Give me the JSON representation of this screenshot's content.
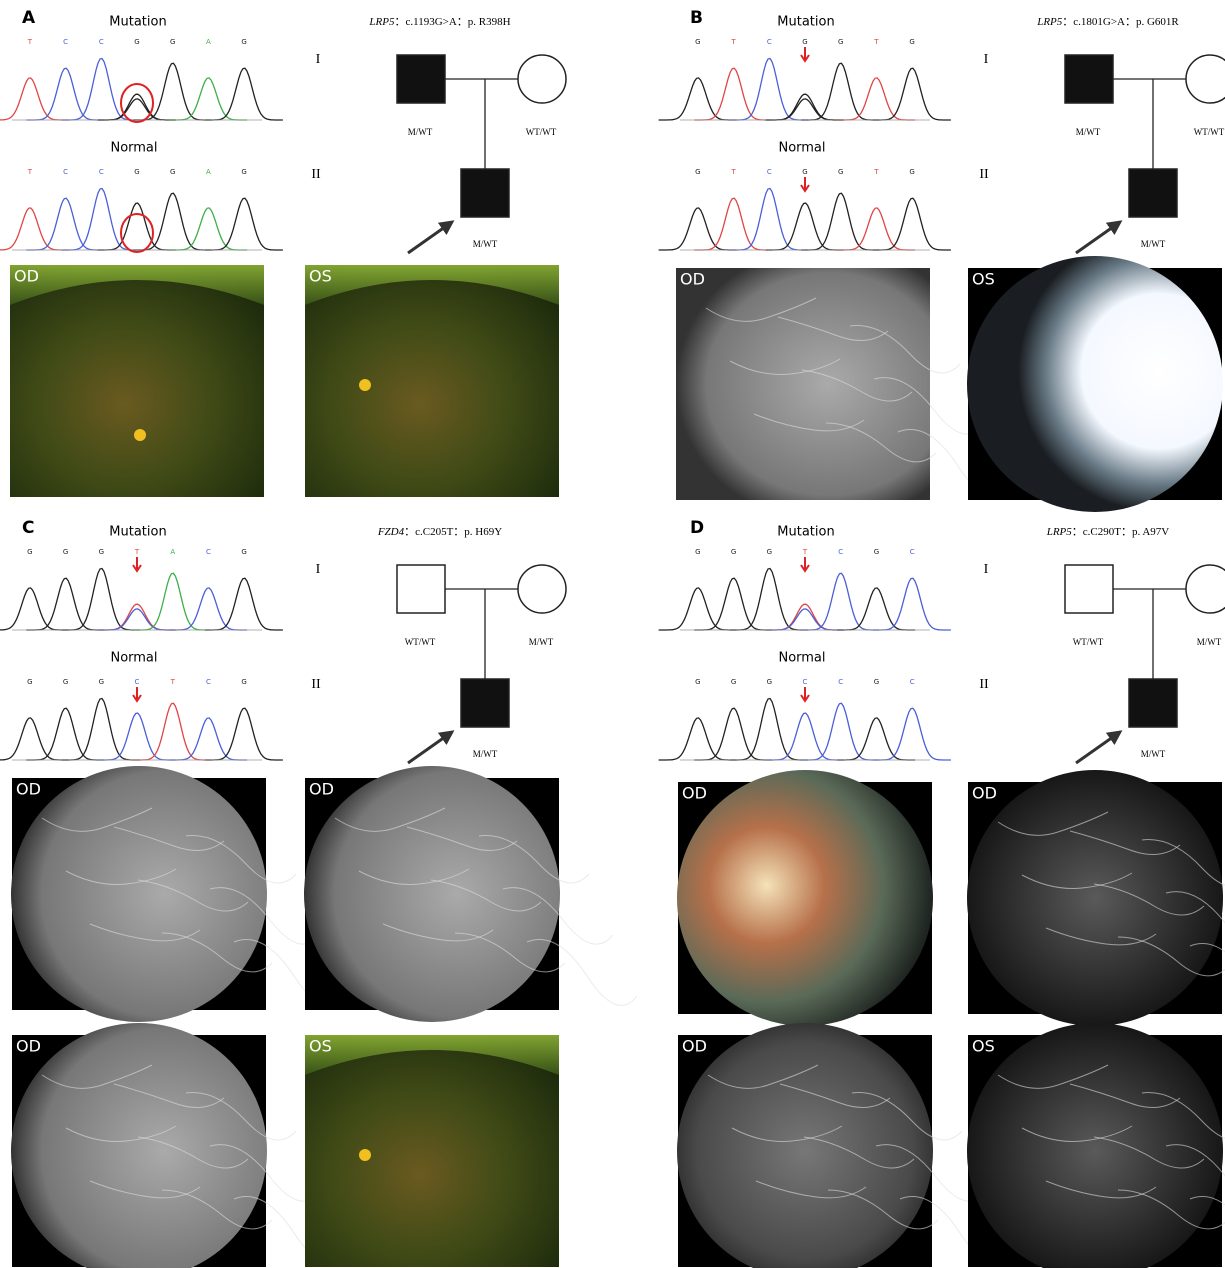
{
  "panels": [
    {
      "label": "A",
      "mutation_title": "Mutation",
      "mutation_bases": [
        "T",
        "C",
        "C",
        "G",
        "G",
        "A",
        "G"
      ],
      "normal_title": "Normal",
      "normal_bases": [
        "T",
        "C",
        "C",
        "G",
        "G",
        "A",
        "G"
      ],
      "gene": "LRP5",
      "variant": "：c.1193G>A：p. R398H",
      "generations": [
        "I",
        "II"
      ],
      "genotypes": {
        "father": "M/WT",
        "mother": "WT/WT",
        "proband": "M/WT"
      },
      "images": [
        {
          "label": "OD"
        },
        {
          "label": "OS"
        }
      ]
    },
    {
      "label": "B",
      "mutation_title": "Mutation",
      "mutation_bases": [
        "G",
        "T",
        "C",
        "G",
        "G",
        "T",
        "G"
      ],
      "normal_title": "Normal",
      "normal_bases": [
        "G",
        "T",
        "C",
        "G",
        "G",
        "T",
        "G"
      ],
      "gene": "LRP5",
      "variant": "：c.1801G>A：p. G601R",
      "generations": [
        "I",
        "II"
      ],
      "genotypes": {
        "father": "M/WT",
        "mother": "WT/WT",
        "proband": "M/WT"
      },
      "images": [
        {
          "label": "OD"
        },
        {
          "label": "OS"
        }
      ]
    },
    {
      "label": "C",
      "mutation_title": "Mutation",
      "mutation_bases": [
        "G",
        "G",
        "G",
        "T",
        "A",
        "C",
        "G"
      ],
      "normal_title": "Normal",
      "normal_bases": [
        "G",
        "G",
        "G",
        "C",
        "T",
        "C",
        "G"
      ],
      "gene": "FZD4",
      "variant": "：c.C205T：p. H69Y",
      "generations": [
        "I",
        "II"
      ],
      "genotypes": {
        "father": "WT/WT",
        "mother": "M/WT",
        "proband": "M/WT"
      },
      "images": [
        {
          "label": "OD"
        },
        {
          "label": "OD"
        },
        {
          "label": "OD"
        },
        {
          "label": "OS"
        }
      ]
    },
    {
      "label": "D",
      "mutation_title": "Mutation",
      "mutation_bases": [
        "G",
        "G",
        "G",
        "T",
        "C",
        "G",
        "C"
      ],
      "normal_title": "Normal",
      "normal_bases": [
        "G",
        "G",
        "G",
        "C",
        "C",
        "G",
        "C"
      ],
      "gene": "LRP5",
      "variant": "：c.C290T：p. A97V",
      "generations": [
        "I",
        "II"
      ],
      "genotypes": {
        "father": "WT/WT",
        "mother": "M/WT",
        "proband": "M/WT"
      },
      "images": [
        {
          "label": "OD"
        },
        {
          "label": "OD"
        },
        {
          "label": "OD"
        },
        {
          "label": "OS"
        }
      ]
    }
  ]
}
